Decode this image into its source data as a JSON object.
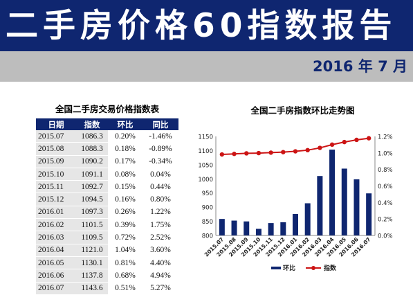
{
  "header": {
    "title": "二手房价格60指数报告",
    "date": "2016 年 7 月"
  },
  "table": {
    "title": "全国二手房交易价格指数表",
    "columns": [
      "日期",
      "指数",
      "环比",
      "同比"
    ],
    "rows": [
      [
        "2015.07",
        "1086.3",
        "0.20%",
        "-1.46%"
      ],
      [
        "2015.08",
        "1088.3",
        "0.18%",
        "-0.89%"
      ],
      [
        "2015.09",
        "1090.2",
        "0.17%",
        "-0.34%"
      ],
      [
        "2015.10",
        "1091.1",
        "0.08%",
        "0.04%"
      ],
      [
        "2015.11",
        "1092.7",
        "0.15%",
        "0.44%"
      ],
      [
        "2015.12",
        "1094.5",
        "0.16%",
        "0.80%"
      ],
      [
        "2016.01",
        "1097.3",
        "0.26%",
        "1.22%"
      ],
      [
        "2016.02",
        "1101.5",
        "0.39%",
        "1.75%"
      ],
      [
        "2016.03",
        "1109.5",
        "0.72%",
        "2.52%"
      ],
      [
        "2016.04",
        "1121.0",
        "1.04%",
        "3.60%"
      ],
      [
        "2016.05",
        "1130.1",
        "0.81%",
        "4.40%"
      ],
      [
        "2016.06",
        "1137.8",
        "0.68%",
        "4.94%"
      ],
      [
        "2016.07",
        "1143.6",
        "0.51%",
        "5.27%"
      ]
    ]
  },
  "chart_data": {
    "type": "bar",
    "title": "全国二手房指数环比走势图",
    "categories": [
      "2015.07",
      "2015.08",
      "2015.09",
      "2015.10",
      "2015.11",
      "2015.12",
      "2016.01",
      "2016.02",
      "2016.03",
      "2016.04",
      "2016.05",
      "2016.06",
      "2016.07"
    ],
    "series": [
      {
        "name": "环比",
        "type": "bar",
        "axis": "right",
        "color": "#0f2670",
        "values": [
          0.2,
          0.18,
          0.17,
          0.08,
          0.15,
          0.16,
          0.26,
          0.39,
          0.72,
          1.04,
          0.81,
          0.68,
          0.51
        ]
      },
      {
        "name": "指数",
        "type": "line",
        "axis": "left",
        "color": "#cc1414",
        "values": [
          1086.3,
          1088.3,
          1090.2,
          1091.1,
          1092.7,
          1094.5,
          1097.3,
          1101.5,
          1109.5,
          1121.0,
          1130.1,
          1137.8,
          1143.6
        ]
      }
    ],
    "left_axis": {
      "ylim": [
        800,
        1150
      ],
      "ticks": [
        "800",
        "850",
        "900",
        "950",
        "1000",
        "1050",
        "1100",
        "1150"
      ]
    },
    "right_axis": {
      "ylim": [
        0,
        1.2
      ],
      "ticks": [
        "0.0%",
        "0.2%",
        "0.4%",
        "0.6%",
        "0.8%",
        "1.0%",
        "1.2%"
      ]
    },
    "grid": false,
    "legend_position": "bottom"
  }
}
